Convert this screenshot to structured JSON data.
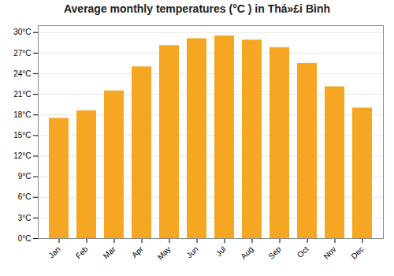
{
  "chart_data": {
    "type": "bar",
    "title": "Average monthly temperatures (°C ) in Thá»£i Bình",
    "categories": [
      "Jan",
      "Feb",
      "Mar",
      "Apr",
      "May",
      "Jun",
      "Jul",
      "Aug",
      "Sep",
      "Oct",
      "Nov",
      "Dec"
    ],
    "values": [
      17.5,
      18.6,
      21.5,
      25.0,
      28.1,
      29.1,
      29.5,
      28.9,
      27.8,
      25.5,
      22.1,
      19.0
    ],
    "color": "#F5A623",
    "ylim": [
      0,
      31
    ],
    "yticks": [
      {
        "value": 0,
        "label": "0°C"
      },
      {
        "value": 3,
        "label": "3°C"
      },
      {
        "value": 6,
        "label": "6°C"
      },
      {
        "value": 9,
        "label": "9°C"
      },
      {
        "value": 12,
        "label": "12°C"
      },
      {
        "value": 15,
        "label": "15°C"
      },
      {
        "value": 18,
        "label": "18°C"
      },
      {
        "value": 21,
        "label": "21°C"
      },
      {
        "value": 24,
        "label": "24°C"
      },
      {
        "value": 27,
        "label": "27°C"
      },
      {
        "value": 30,
        "label": "30°C"
      }
    ],
    "grid": true
  }
}
